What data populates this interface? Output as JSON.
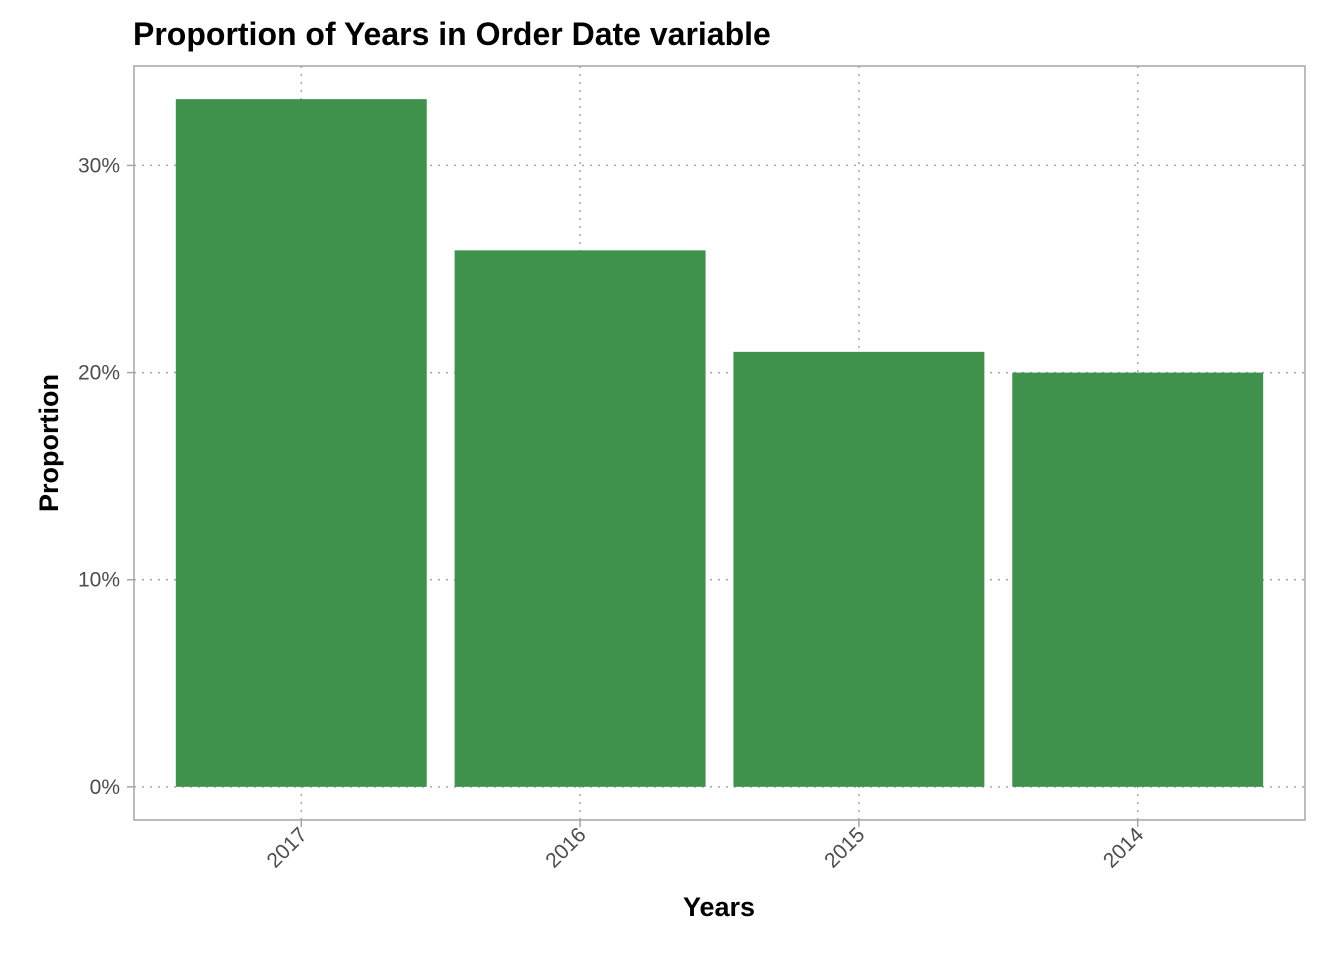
{
  "chart_data": {
    "type": "bar",
    "title": "Proportion of Years in Order Date variable",
    "xlabel": "Years",
    "ylabel": "Proportion",
    "categories": [
      "2017",
      "2016",
      "2015",
      "2014"
    ],
    "values": [
      0.332,
      0.259,
      0.21,
      0.2
    ],
    "ylim": [
      -0.016,
      0.348
    ],
    "yticks": [
      0,
      0.1,
      0.2,
      0.3
    ],
    "ytick_labels": [
      "0%",
      "10%",
      "20%",
      "30%"
    ],
    "grid": true,
    "bar_color": "#3e924b",
    "legend": "none"
  }
}
